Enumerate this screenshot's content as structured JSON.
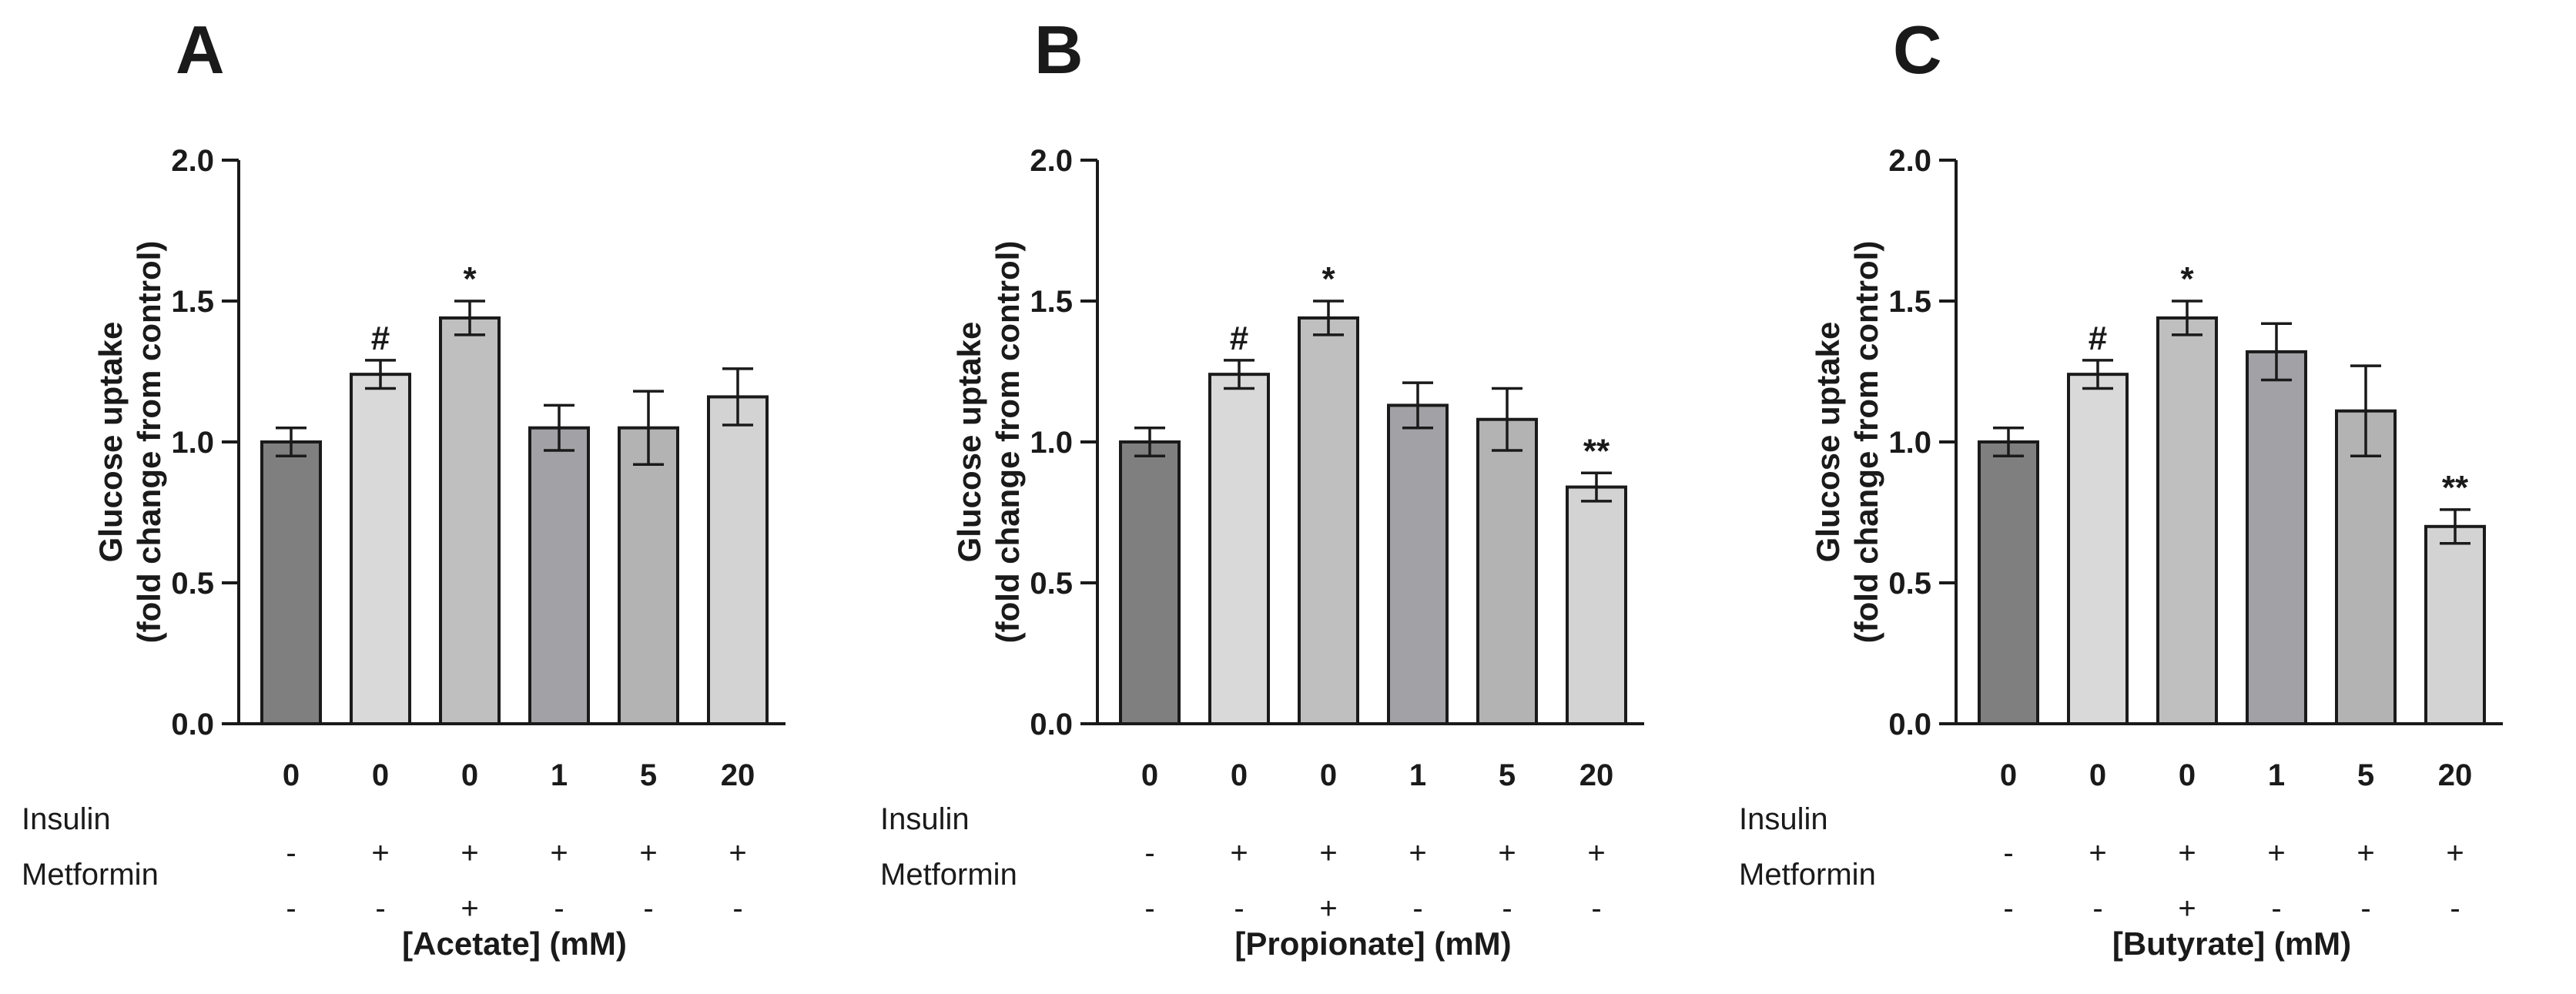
{
  "chart_data": [
    {
      "type": "bar",
      "panel_label": "A",
      "ylabel_line1": "Glucose uptake",
      "ylabel_line2": "(fold change from control)",
      "ylim": [
        0,
        2.0
      ],
      "yticks": [
        "0.0",
        "0.5",
        "1.0",
        "1.5",
        "2.0"
      ],
      "categories": [
        "0",
        "0",
        "0",
        "1",
        "5",
        "20"
      ],
      "values": [
        1.0,
        1.24,
        1.44,
        1.05,
        1.05,
        1.16
      ],
      "errors": [
        0.05,
        0.05,
        0.06,
        0.08,
        0.13,
        0.1
      ],
      "colors": [
        "#7f7f7f",
        "#d9d9d9",
        "#bfbfbf",
        "#a1a1a6",
        "#b3b3b3",
        "#d3d3d3"
      ],
      "annotations": [
        "",
        "#",
        "*",
        "",
        "",
        ""
      ],
      "rows": [
        {
          "name": "Insulin",
          "signs": [
            "-",
            "+",
            "+",
            "+",
            "+",
            "+"
          ]
        },
        {
          "name": "Metformin",
          "signs": [
            "-",
            "-",
            "+",
            "-",
            "-",
            "-"
          ]
        }
      ],
      "xlabel": "[Acetate] (mM)"
    },
    {
      "type": "bar",
      "panel_label": "B",
      "ylabel_line1": "Glucose uptake",
      "ylabel_line2": "(fold change from control)",
      "ylim": [
        0,
        2.0
      ],
      "yticks": [
        "0.0",
        "0.5",
        "1.0",
        "1.5",
        "2.0"
      ],
      "categories": [
        "0",
        "0",
        "0",
        "1",
        "5",
        "20"
      ],
      "values": [
        1.0,
        1.24,
        1.44,
        1.13,
        1.08,
        0.84
      ],
      "errors": [
        0.05,
        0.05,
        0.06,
        0.08,
        0.11,
        0.05
      ],
      "colors": [
        "#7f7f7f",
        "#d9d9d9",
        "#bfbfbf",
        "#a1a1a6",
        "#b3b3b3",
        "#d3d3d3"
      ],
      "annotations": [
        "",
        "#",
        "*",
        "",
        "",
        "**"
      ],
      "rows": [
        {
          "name": "Insulin",
          "signs": [
            "-",
            "+",
            "+",
            "+",
            "+",
            "+"
          ]
        },
        {
          "name": "Metformin",
          "signs": [
            "-",
            "-",
            "+",
            "-",
            "-",
            "-"
          ]
        }
      ],
      "xlabel": "[Propionate] (mM)"
    },
    {
      "type": "bar",
      "panel_label": "C",
      "ylabel_line1": "Glucose uptake",
      "ylabel_line2": "(fold change from control)",
      "ylim": [
        0,
        2.0
      ],
      "yticks": [
        "0.0",
        "0.5",
        "1.0",
        "1.5",
        "2.0"
      ],
      "categories": [
        "0",
        "0",
        "0",
        "1",
        "5",
        "20"
      ],
      "values": [
        1.0,
        1.24,
        1.44,
        1.32,
        1.11,
        0.7
      ],
      "errors": [
        0.05,
        0.05,
        0.06,
        0.1,
        0.16,
        0.06
      ],
      "colors": [
        "#7f7f7f",
        "#d9d9d9",
        "#bfbfbf",
        "#a1a1a6",
        "#b3b3b3",
        "#d3d3d3"
      ],
      "annotations": [
        "",
        "#",
        "*",
        "",
        "",
        "**"
      ],
      "rows": [
        {
          "name": "Insulin",
          "signs": [
            "-",
            "+",
            "+",
            "+",
            "+",
            "+"
          ]
        },
        {
          "name": "Metformin",
          "signs": [
            "-",
            "-",
            "+",
            "-",
            "-",
            "-"
          ]
        }
      ],
      "xlabel": "[Butyrate] (mM)"
    }
  ]
}
